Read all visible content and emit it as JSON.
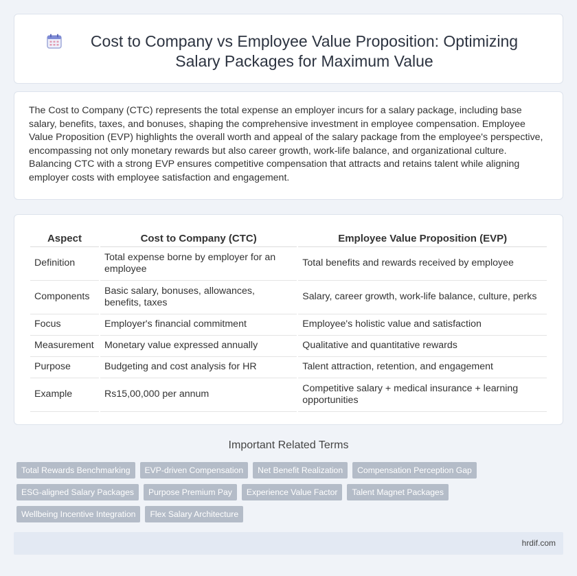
{
  "header": {
    "icon": "calendar-icon",
    "title": "Cost to Company vs Employee Value Proposition: Optimizing Salary Packages for Maximum Value"
  },
  "intro": "The Cost to Company (CTC) represents the total expense an employer incurs for a salary package, including base salary, benefits, taxes, and bonuses, shaping the comprehensive investment in employee compensation. Employee Value Proposition (EVP) highlights the overall worth and appeal of the salary package from the employee's perspective, encompassing not only monetary rewards but also career growth, work-life balance, and organizational culture. Balancing CTC with a strong EVP ensures competitive compensation that attracts and retains talent while aligning employer costs with employee satisfaction and engagement.",
  "table": {
    "headers": [
      "Aspect",
      "Cost to Company (CTC)",
      "Employee Value Proposition (EVP)"
    ],
    "rows": [
      [
        "Definition",
        "Total expense borne by employer for an employee",
        "Total benefits and rewards received by employee"
      ],
      [
        "Components",
        "Basic salary, bonuses, allowances, benefits, taxes",
        "Salary, career growth, work-life balance, culture, perks"
      ],
      [
        "Focus",
        "Employer's financial commitment",
        "Employee's holistic value and satisfaction"
      ],
      [
        "Measurement",
        "Monetary value expressed annually",
        "Qualitative and quantitative rewards"
      ],
      [
        "Purpose",
        "Budgeting and cost analysis for HR",
        "Talent attraction, retention, and engagement"
      ],
      [
        "Example",
        "Rs15,00,000 per annum",
        "Competitive salary + medical insurance + learning opportunities"
      ]
    ]
  },
  "related": {
    "heading": "Important Related Terms",
    "terms": [
      "Total Rewards Benchmarking",
      "EVP-driven Compensation",
      "Net Benefit Realization",
      "Compensation Perception Gap",
      "ESG-aligned Salary Packages",
      "Purpose Premium Pay",
      "Experience Value Factor",
      "Talent Magnet Packages",
      "Wellbeing Incentive Integration",
      "Flex Salary Architecture"
    ]
  },
  "footer": {
    "site": "hrdif.com"
  },
  "colors": {
    "background": "#f0f3f8",
    "tag": "#b4bcc8",
    "footer": "#e3e9f3",
    "icon_accent": "#9fa8d8"
  }
}
